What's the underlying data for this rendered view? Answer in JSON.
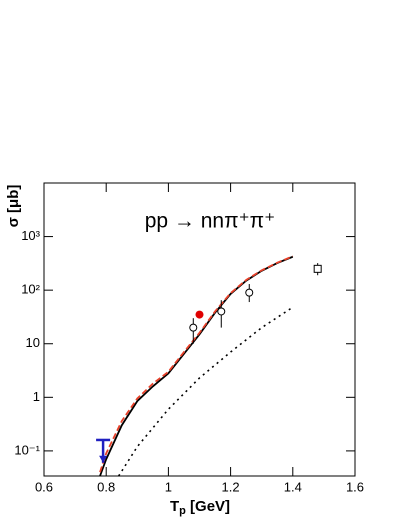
{
  "chart_data": {
    "type": "line",
    "annotation": "pp → nnπ⁺π⁺",
    "x_label": [
      "T",
      "p",
      " [GeV]"
    ],
    "y_label": "σ [μb]",
    "log_y": true,
    "xlim": [
      0.6,
      1.6
    ],
    "ylim": [
      0.034,
      10000
    ],
    "xticks": [
      0.6,
      0.8,
      1,
      1.2,
      1.4,
      1.6
    ],
    "yticks": [
      {
        "value": 0.1,
        "label": "10⁻¹"
      },
      1,
      10,
      {
        "value": 100,
        "label": "10²"
      },
      {
        "value": 1000,
        "label": "10³"
      }
    ],
    "series": [
      {
        "style": "solid",
        "color": "#000000",
        "x": [
          0.78,
          0.8,
          0.85,
          0.9,
          0.95,
          1.0,
          1.05,
          1.1,
          1.15,
          1.2,
          1.25,
          1.3,
          1.35,
          1.4
        ],
        "values": [
          0.034,
          0.07,
          0.3,
          0.85,
          1.6,
          2.8,
          6.5,
          15,
          38,
          85,
          150,
          230,
          320,
          420
        ]
      },
      {
        "style": "dashed",
        "color": "#e8412a",
        "x": [
          0.78,
          0.8,
          0.85,
          0.9,
          0.95,
          1.0,
          1.05,
          1.1,
          1.15,
          1.2,
          1.25,
          1.3,
          1.35,
          1.4
        ],
        "values": [
          0.04,
          0.09,
          0.36,
          0.95,
          1.8,
          3.0,
          7,
          16,
          40,
          88,
          155,
          235,
          325,
          430
        ]
      },
      {
        "style": "dotted",
        "color": "#000000",
        "x": [
          0.84,
          0.9,
          1.0,
          1.1,
          1.2,
          1.3,
          1.4
        ],
        "values": [
          0.034,
          0.12,
          0.6,
          2.3,
          7,
          20,
          48
        ]
      },
      {
        "style": "open-circle",
        "color": "#000000",
        "x": [
          1.08,
          1.17,
          1.26
        ],
        "values": [
          20,
          40,
          90
        ],
        "ylow": [
          10,
          20,
          60
        ],
        "yhigh": [
          30,
          65,
          130
        ]
      },
      {
        "style": "open-square",
        "color": "#000000",
        "x": [
          1.48
        ],
        "values": [
          250
        ],
        "ylow": [
          190
        ],
        "yhigh": [
          320
        ]
      },
      {
        "style": "filled-circle",
        "color": "#e00000",
        "x": [
          1.1
        ],
        "values": [
          35
        ]
      },
      {
        "style": "upper-limit",
        "color": "#1f1fc0",
        "x": [
          0.79
        ],
        "values": [
          0.16
        ],
        "arrow_end": [
          0.06
        ]
      }
    ]
  }
}
